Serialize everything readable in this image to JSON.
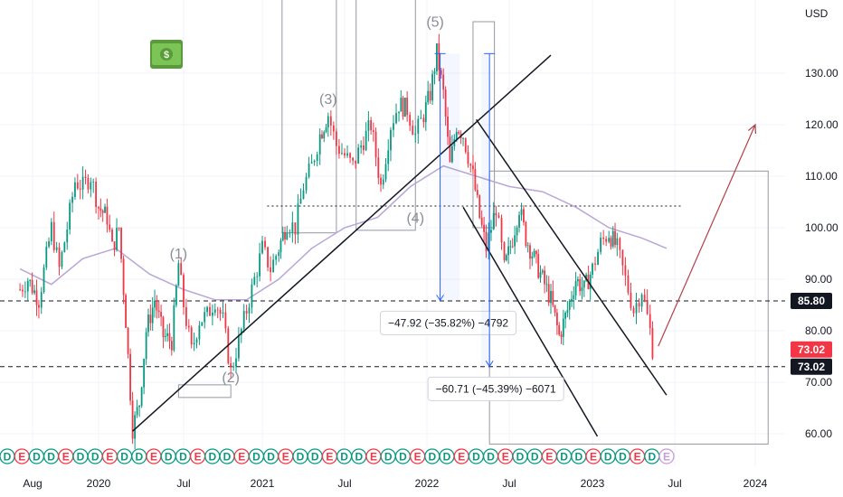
{
  "chart_data": {
    "type": "candlestick",
    "currency": "USD",
    "ylim": [
      55,
      143
    ],
    "y_ticks": [
      60,
      70,
      80,
      90,
      100,
      110,
      120,
      130
    ],
    "y_tick_labels": [
      "60.00",
      "70.00",
      "80.00",
      "90.00",
      "100.00",
      "110.00",
      "120.00",
      "130.00"
    ],
    "x_tick_labels": [
      "Aug",
      "2020",
      "Jul",
      "2021",
      "Jul",
      "2022",
      "Jul",
      "2023",
      "Jul",
      "2024"
    ],
    "price_close_series": [
      [
        2019.5,
        88
      ],
      [
        2019.55,
        90
      ],
      [
        2019.62,
        86
      ],
      [
        2019.7,
        100
      ],
      [
        2019.75,
        92
      ],
      [
        2019.8,
        100
      ],
      [
        2019.85,
        109
      ],
      [
        2019.9,
        108
      ],
      [
        2019.95,
        110
      ],
      [
        2020.0,
        104
      ],
      [
        2020.05,
        102
      ],
      [
        2020.08,
        96
      ],
      [
        2020.12,
        100
      ],
      [
        2020.16,
        82
      ],
      [
        2020.2,
        61
      ],
      [
        2020.24,
        66
      ],
      [
        2020.28,
        80
      ],
      [
        2020.33,
        86
      ],
      [
        2020.38,
        79
      ],
      [
        2020.43,
        78
      ],
      [
        2020.47,
        93
      ],
      [
        2020.5,
        85
      ],
      [
        2020.55,
        76
      ],
      [
        2020.6,
        82
      ],
      [
        2020.65,
        83
      ],
      [
        2020.7,
        86
      ],
      [
        2020.75,
        82
      ],
      [
        2020.8,
        72
      ],
      [
        2020.85,
        78
      ],
      [
        2020.9,
        84
      ],
      [
        2020.95,
        90
      ],
      [
        2021.0,
        96
      ],
      [
        2021.05,
        92
      ],
      [
        2021.1,
        96
      ],
      [
        2021.15,
        101
      ],
      [
        2021.2,
        100
      ],
      [
        2021.25,
        108
      ],
      [
        2021.3,
        112
      ],
      [
        2021.35,
        118
      ],
      [
        2021.4,
        122
      ],
      [
        2021.45,
        116
      ],
      [
        2021.5,
        114
      ],
      [
        2021.55,
        112
      ],
      [
        2021.6,
        116
      ],
      [
        2021.66,
        120
      ],
      [
        2021.72,
        108
      ],
      [
        2021.78,
        120
      ],
      [
        2021.83,
        124
      ],
      [
        2021.88,
        123
      ],
      [
        2021.93,
        118
      ],
      [
        2021.98,
        122
      ],
      [
        2022.02,
        126
      ],
      [
        2022.06,
        134
      ],
      [
        2022.1,
        126
      ],
      [
        2022.14,
        112
      ],
      [
        2022.18,
        120
      ],
      [
        2022.22,
        118
      ],
      [
        2022.28,
        110
      ],
      [
        2022.32,
        102
      ],
      [
        2022.36,
        96
      ],
      [
        2022.42,
        104
      ],
      [
        2022.47,
        92
      ],
      [
        2022.52,
        98
      ],
      [
        2022.56,
        104
      ],
      [
        2022.6,
        98
      ],
      [
        2022.65,
        94
      ],
      [
        2022.7,
        90
      ],
      [
        2022.75,
        86
      ],
      [
        2022.8,
        79
      ],
      [
        2022.85,
        84
      ],
      [
        2022.9,
        90
      ],
      [
        2022.95,
        88
      ],
      [
        2023.0,
        92
      ],
      [
        2023.05,
        97
      ],
      [
        2023.1,
        99
      ],
      [
        2023.15,
        96
      ],
      [
        2023.2,
        90
      ],
      [
        2023.25,
        84
      ],
      [
        2023.3,
        88
      ],
      [
        2023.35,
        80
      ],
      [
        2023.38,
        73.02
      ]
    ],
    "moving_average": [
      [
        2019.5,
        92
      ],
      [
        2019.7,
        89
      ],
      [
        2019.9,
        94
      ],
      [
        2020.1,
        96
      ],
      [
        2020.3,
        91
      ],
      [
        2020.5,
        88
      ],
      [
        2020.7,
        86
      ],
      [
        2020.9,
        86
      ],
      [
        2021.1,
        90
      ],
      [
        2021.3,
        96
      ],
      [
        2021.5,
        100
      ],
      [
        2021.7,
        102
      ],
      [
        2021.9,
        108
      ],
      [
        2022.1,
        112
      ],
      [
        2022.3,
        110
      ],
      [
        2022.5,
        108
      ],
      [
        2022.7,
        107
      ],
      [
        2022.9,
        104
      ],
      [
        2023.1,
        100
      ],
      [
        2023.3,
        98
      ],
      [
        2023.45,
        96
      ]
    ],
    "horizontal_levels": [
      {
        "price": 85.8,
        "label": "85.80",
        "style": "dashed",
        "color": "#131722"
      },
      {
        "price": 73.02,
        "label": "73.02",
        "style": "dashed",
        "color": "#131722"
      },
      {
        "price": 104.2,
        "label": "",
        "style": "dotted",
        "color": "#131722"
      }
    ],
    "price_badges": [
      {
        "price": 85.8,
        "label": "85.80",
        "color": "#131722"
      },
      {
        "price": 73.02,
        "label": "73.02",
        "color": "#f23645"
      },
      {
        "price": 73.02,
        "label": "73.02",
        "color": "#131722"
      }
    ],
    "wave_labels": [
      {
        "text": "(1)",
        "x": 2020.47,
        "price": 94
      },
      {
        "text": "(2)",
        "x": 2020.8,
        "price": 70
      },
      {
        "text": "(3)",
        "x": 2021.4,
        "price": 124
      },
      {
        "text": "(4)",
        "x": 2021.93,
        "price": 101
      },
      {
        "text": "(5)",
        "x": 2022.05,
        "price": 139
      }
    ],
    "measurements": [
      {
        "text": "−47.92 (−35.82%) −4792",
        "x0": 2022.08,
        "x1": 2022.2,
        "price_from": 133.8,
        "price_to": 85.9
      },
      {
        "text": "−60.71 (−45.39%) −6071",
        "x0": 2022.33,
        "x1": 2022.38,
        "price_from": 133.8,
        "price_to": 73.1
      }
    ],
    "trendlines": [
      {
        "from": [
          2020.2,
          60.5
        ],
        "to": [
          2022.75,
          133.5
        ],
        "color": "#131722"
      },
      {
        "from": [
          2022.3,
          121
        ],
        "to": [
          2023.45,
          67.5
        ],
        "color": "#131722"
      },
      {
        "from": [
          2022.22,
          104
        ],
        "to": [
          2023.03,
          59.5
        ],
        "color": "#131722"
      }
    ],
    "projection_arrow": {
      "from": [
        2023.4,
        77
      ],
      "to": [
        2024.0,
        120
      ],
      "color": "#b2404a"
    },
    "boxes": [
      {
        "x0": 2020.47,
        "x1": 2020.8,
        "p0": 69.5,
        "p1": 69.5
      },
      {
        "x0": 2021.12,
        "x1": 2021.45,
        "p0": 99,
        "p1": 147
      },
      {
        "x0": 2021.57,
        "x1": 2021.93,
        "p0": 99.5,
        "p1": 147
      },
      {
        "x0": 2022.28,
        "x1": 2022.41,
        "p0": 100,
        "p1": 140
      },
      {
        "x0": 2022.38,
        "x1": 2024.08,
        "p0": 58,
        "p1": 111
      }
    ],
    "event_markers": [
      "D",
      "E",
      "D",
      "D",
      "E",
      "D",
      "D",
      "E",
      "D",
      "D",
      "E",
      "D",
      "D",
      "E",
      "D",
      "D",
      "E",
      "D",
      "D",
      "E",
      "D",
      "D",
      "E",
      "D",
      "D",
      "E",
      "D",
      "D",
      "E",
      "D",
      "D",
      "E",
      "D",
      "D",
      "E",
      "D",
      "D",
      "E",
      "D",
      "D",
      "E",
      "D",
      "D",
      "E",
      "D",
      "E"
    ]
  },
  "icons": {
    "money": "money-banknote-icon"
  }
}
